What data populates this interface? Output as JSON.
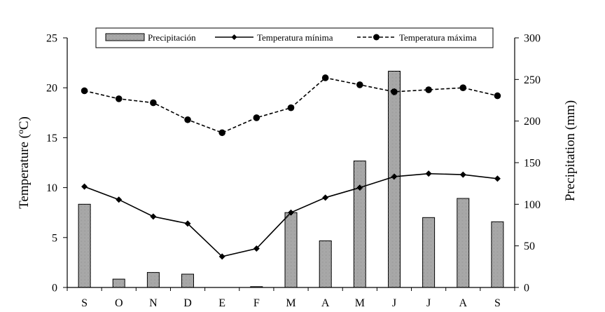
{
  "chart_data": {
    "type": "bar+line",
    "categories": [
      "S",
      "O",
      "N",
      "D",
      "E",
      "F",
      "M",
      "A",
      "M",
      "J",
      "J",
      "A",
      "S"
    ],
    "ylabel_left": "Temperature (ºC)",
    "ylabel_right": "Precipitation (mm)",
    "ylim_left": [
      0,
      25
    ],
    "yticks_left": [
      0,
      5,
      10,
      15,
      20,
      25
    ],
    "ylim_right": [
      0,
      300
    ],
    "yticks_right": [
      0,
      50,
      100,
      150,
      200,
      250,
      300
    ],
    "grid": false,
    "legend_position": "top",
    "series": [
      {
        "name": "Precipitación",
        "type": "bar",
        "axis": "right",
        "values": [
          100,
          10,
          18,
          16,
          0,
          1,
          90,
          56,
          152,
          260,
          84,
          107,
          79
        ]
      },
      {
        "name": "Temperatura mínima",
        "type": "line",
        "axis": "left",
        "marker": "diamond",
        "dash": "solid",
        "values": [
          10.1,
          8.8,
          7.1,
          6.4,
          3.1,
          3.9,
          7.5,
          9.0,
          10.0,
          11.1,
          11.4,
          11.3,
          10.9
        ]
      },
      {
        "name": "Temperatura máxima",
        "type": "line",
        "axis": "left",
        "marker": "circle",
        "dash": "dashed",
        "values": [
          19.7,
          18.9,
          18.5,
          16.8,
          15.5,
          17.0,
          18.0,
          21.0,
          20.3,
          19.6,
          19.8,
          20.0,
          19.2
        ]
      }
    ]
  }
}
